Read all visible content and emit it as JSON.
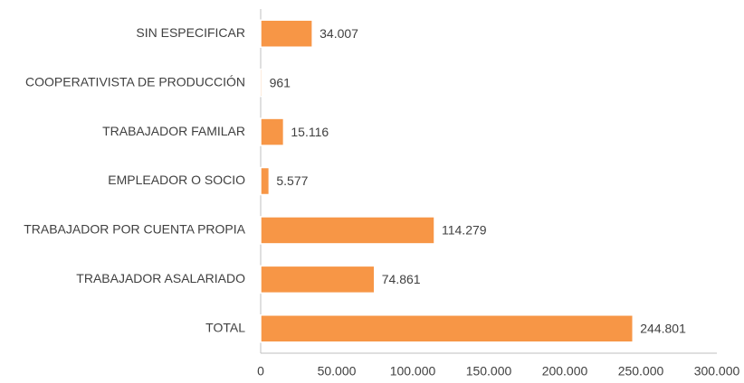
{
  "chart_data": {
    "type": "hbar",
    "categories": [
      "SIN ESPECIFICAR",
      "COOPERATIVISTA DE PRODUCCIÓN",
      "TRABAJADOR FAMILAR",
      "EMPLEADOR O SOCIO",
      "TRABAJADOR POR CUENTA PROPIA",
      "TRABAJADOR ASALARIADO",
      "TOTAL"
    ],
    "values": [
      34007,
      961,
      15116,
      5577,
      114279,
      74861,
      244801
    ],
    "value_labels": [
      "34.007",
      "961",
      "15.116",
      "5.577",
      "114.279",
      "74.861",
      "244.801"
    ],
    "color": "#f79646",
    "xlim": [
      0,
      300000
    ],
    "xticks": [
      0,
      {
        "value": 50000,
        "label": "50.000"
      },
      {
        "value": 100000,
        "label": "100.000"
      },
      {
        "value": 150000,
        "label": "150.000"
      },
      {
        "value": 200000,
        "label": "200.000"
      },
      {
        "value": 250000,
        "label": "250.000"
      },
      {
        "value": 300000,
        "label": "300.000"
      }
    ],
    "grid": false
  }
}
